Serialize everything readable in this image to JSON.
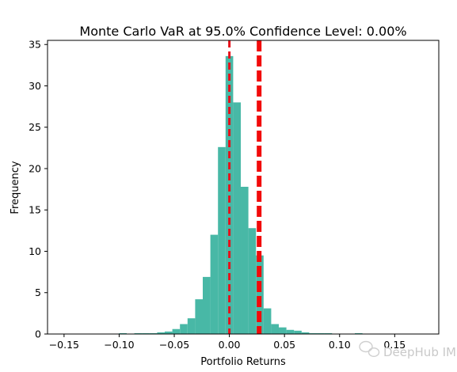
{
  "chart_data": {
    "type": "bar",
    "title": "Monte Carlo VaR at 95.0% Confidence Level: 0.00%",
    "xlabel": "Portfolio Returns",
    "ylabel": "Frequency",
    "xlim": [
      -0.165,
      0.19
    ],
    "ylim": [
      0,
      35.5
    ],
    "x_ticks": [
      -0.15,
      -0.1,
      -0.05,
      0.0,
      0.05,
      0.1,
      0.15
    ],
    "x_tick_labels": [
      "−0.15",
      "−0.10",
      "−0.05",
      "0.00",
      "0.05",
      "0.10",
      "0.15"
    ],
    "y_ticks": [
      0,
      5,
      10,
      15,
      20,
      25,
      30,
      35
    ],
    "y_tick_labels": [
      "0",
      "5",
      "10",
      "15",
      "20",
      "25",
      "30",
      "35"
    ],
    "bar_color": "#48b8a6",
    "bin_width": 0.0069,
    "bins": [
      {
        "x": -0.0966,
        "value": 0.1
      },
      {
        "x": -0.0828,
        "value": 0.1
      },
      {
        "x": -0.0759,
        "value": 0.1
      },
      {
        "x": -0.069,
        "value": 0.1
      },
      {
        "x": -0.0621,
        "value": 0.2
      },
      {
        "x": -0.0552,
        "value": 0.3
      },
      {
        "x": -0.0483,
        "value": 0.6
      },
      {
        "x": -0.0414,
        "value": 1.2
      },
      {
        "x": -0.0345,
        "value": 1.9
      },
      {
        "x": -0.0276,
        "value": 4.2
      },
      {
        "x": -0.0207,
        "value": 6.9
      },
      {
        "x": -0.0138,
        "value": 12.0
      },
      {
        "x": -0.0069,
        "value": 22.6
      },
      {
        "x": 0.0,
        "value": 33.6
      },
      {
        "x": 0.0069,
        "value": 28.0
      },
      {
        "x": 0.0138,
        "value": 17.8
      },
      {
        "x": 0.0207,
        "value": 12.8
      },
      {
        "x": 0.0276,
        "value": 9.5
      },
      {
        "x": 0.0345,
        "value": 3.1
      },
      {
        "x": 0.0414,
        "value": 1.2
      },
      {
        "x": 0.0483,
        "value": 0.8
      },
      {
        "x": 0.0552,
        "value": 0.5
      },
      {
        "x": 0.0621,
        "value": 0.4
      },
      {
        "x": 0.069,
        "value": 0.2
      },
      {
        "x": 0.0759,
        "value": 0.1
      },
      {
        "x": 0.0828,
        "value": 0.1
      },
      {
        "x": 0.0897,
        "value": 0.1
      },
      {
        "x": 0.1173,
        "value": 0.1
      }
    ],
    "vlines": [
      {
        "x": 0.0,
        "color": "#e8101a",
        "style": "dashed",
        "weight": "medium"
      },
      {
        "x": 0.027,
        "color": "#f20a0a",
        "style": "dashed",
        "weight": "heavy"
      }
    ],
    "grid": false
  },
  "watermark": {
    "text": "DeepHub IMBA"
  }
}
